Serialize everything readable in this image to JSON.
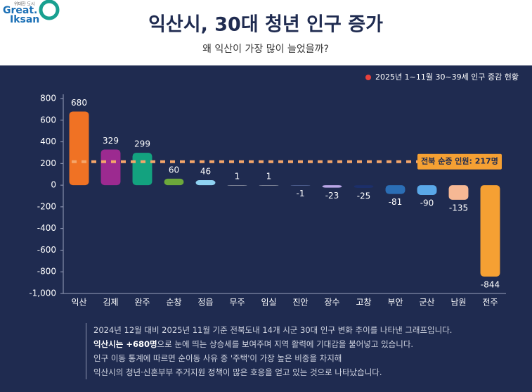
{
  "header": {
    "logo_small": "위대한 도시",
    "logo_line1": "Great.",
    "logo_line2": "Iksan"
  },
  "chart_data": {
    "type": "bar",
    "title": "익산시, 30대 청년 인구 증가",
    "subtitle": "왜 익산이 가장 많이 늘었을까?",
    "legend": "2025년 1~11월 30~39세 인구 증감 현황",
    "legend_color": "#e8413c",
    "categories": [
      "익산",
      "김제",
      "완주",
      "순창",
      "정읍",
      "무주",
      "임실",
      "진안",
      "장수",
      "고창",
      "부안",
      "군산",
      "남원",
      "전주"
    ],
    "values": [
      680,
      329,
      299,
      60,
      46,
      1,
      1,
      -1,
      -23,
      -25,
      -81,
      -90,
      -135,
      -844
    ],
    "colors": [
      "#f07224",
      "#9c2a90",
      "#13a27f",
      "#6ca83b",
      "#8fd2f2",
      "#d9d9d9",
      "#d9d9d9",
      "#7a8fc8",
      "#b9a6e6",
      "#1c2f6a",
      "#2b6eb5",
      "#5aa8e8",
      "#f6b894",
      "#f5a033"
    ],
    "ylim": [
      -1000,
      800
    ],
    "yticks": [
      {
        "value": -1000,
        "label": "-1,000"
      },
      -800,
      -600,
      -400,
      -200,
      0,
      200,
      400,
      600,
      800
    ],
    "annotation": {
      "value": 217,
      "label": "전북 순증 인원: 217명",
      "color": "#f5a66a"
    }
  },
  "footnote": {
    "line1": "2024년 12월 대비 2025년 11월 기준 전북도내 14개 시군 30대 인구 변화 추이를 나타낸 그래프입니다.",
    "line2_bold": "익산시는 +680명",
    "line2_rest": "으로 눈에 띄는 상승세를 보여주며 지역 활력에 기대감을 불어넣고 있습니다.",
    "line3": "인구 이동 통계에 따르면 순이동 사유 중 '주택'이 가장 높은 비중을 차지해",
    "line4": "익산시의 청년·신혼부부 주거지원 정책이 많은 호응을 얻고 있는 것으로 나타났습니다."
  }
}
